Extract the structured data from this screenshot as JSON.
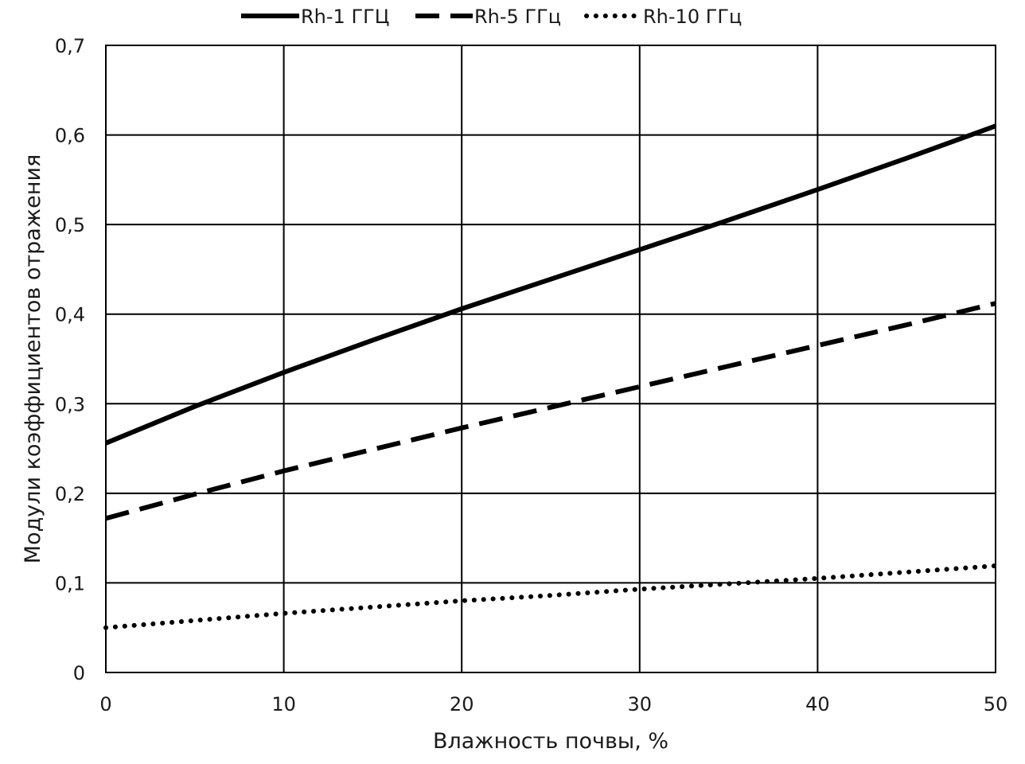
{
  "chart_data": {
    "type": "line",
    "title": "",
    "xlabel": "Влажность почвы, %",
    "ylabel": "Модули коэффициентов отражения",
    "xlim": [
      0,
      50
    ],
    "ylim": [
      0,
      0.7
    ],
    "x_ticks": [
      0,
      10,
      20,
      30,
      40,
      50
    ],
    "x_tick_labels": [
      "0",
      "10",
      "20",
      "30",
      "40",
      "50"
    ],
    "y_ticks": [
      0,
      0.1,
      0.2,
      0.3,
      0.4,
      0.5,
      0.6,
      0.7
    ],
    "y_tick_labels": [
      "0",
      "0,1",
      "0,2",
      "0,3",
      "0,4",
      "0,5",
      "0,6",
      "0,7"
    ],
    "grid": true,
    "legend_position": "top-center",
    "series": [
      {
        "name": "Rh-1 ГГЦ",
        "style": "solid",
        "color": "#000000",
        "x": [
          0,
          5,
          10,
          15,
          20,
          25,
          30,
          35,
          40,
          45,
          50
        ],
        "values": [
          0.256,
          0.297,
          0.335,
          0.371,
          0.406,
          0.439,
          0.472,
          0.505,
          0.539,
          0.574,
          0.61
        ]
      },
      {
        "name": "Rh-5 ГГц",
        "style": "dashed",
        "color": "#000000",
        "x": [
          0,
          5,
          10,
          15,
          20,
          25,
          30,
          35,
          40,
          45,
          50
        ],
        "values": [
          0.172,
          0.199,
          0.225,
          0.249,
          0.273,
          0.296,
          0.319,
          0.342,
          0.365,
          0.388,
          0.412
        ]
      },
      {
        "name": "Rh-10 ГГц",
        "style": "dotted",
        "color": "#000000",
        "x": [
          0,
          5,
          10,
          15,
          20,
          25,
          30,
          35,
          40,
          45,
          50
        ],
        "values": [
          0.05,
          0.058,
          0.066,
          0.073,
          0.08,
          0.086,
          0.093,
          0.099,
          0.105,
          0.112,
          0.119
        ]
      }
    ]
  }
}
